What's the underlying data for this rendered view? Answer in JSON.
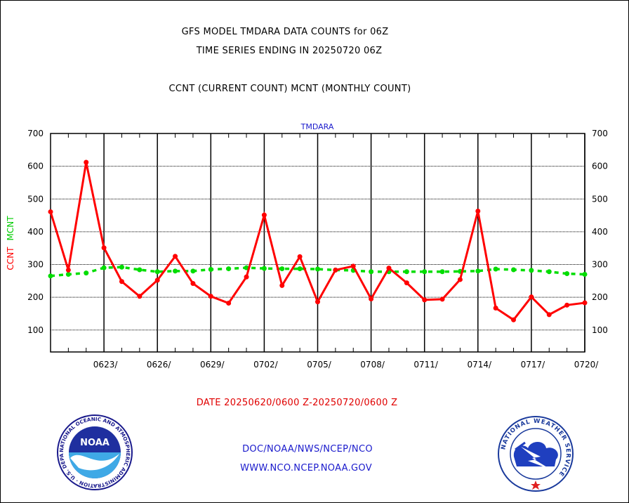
{
  "header": {
    "title_line1": "GFS MODEL TMDARA DATA COUNTS for 06Z",
    "title_line2": "TIME SERIES ENDING IN 20250720 06Z",
    "title_line3": "CCNT (CURRENT COUNT) MCNT (MONTHLY COUNT)"
  },
  "footer": {
    "date_range": "DATE 20250620/0600 Z-20250720/0600 Z",
    "org_line": "DOC/NOAA/NWS/NCEP/NCO",
    "url_line": "WWW.NCO.NCEP.NOAA.GOV"
  },
  "logos": {
    "noaa_text": "NOAA",
    "noaa_ring": "NATIONAL OCEANIC AND ATMOSPHERIC ADMINISTRATION · U.S. DEPARTMENT OF COMMERCE",
    "nws_ring": "NATIONAL WEATHER SERVICE"
  },
  "colors": {
    "ccnt": "#ff0000",
    "mcnt": "#00dd00",
    "ylabel_ccnt": "#ff0000",
    "ylabel_mcnt": "#00cc00",
    "chart_title": "#1a1acc",
    "axes": "#000000"
  },
  "chart_data": {
    "type": "line",
    "title": "TMDARA",
    "xlabel": "",
    "ylabel": "CCNT  MCNT",
    "ylabel_parts": [
      "CCNT",
      "MCNT"
    ],
    "ylim": [
      33,
      700
    ],
    "yticks": [
      100,
      200,
      300,
      400,
      500,
      600,
      700
    ],
    "x_day_range": [
      0,
      30
    ],
    "xticks": [
      {
        "day": 3,
        "label": "0623/"
      },
      {
        "day": 6,
        "label": "0626/"
      },
      {
        "day": 9,
        "label": "0629/"
      },
      {
        "day": 12,
        "label": "0702/"
      },
      {
        "day": 15,
        "label": "0705/"
      },
      {
        "day": 18,
        "label": "0708/"
      },
      {
        "day": 21,
        "label": "0711/"
      },
      {
        "day": 24,
        "label": "0714/"
      },
      {
        "day": 27,
        "label": "0717/"
      },
      {
        "day": 30,
        "label": "0720/"
      }
    ],
    "x": [
      0,
      1,
      2,
      3,
      4,
      5,
      6,
      7,
      8,
      9,
      10,
      11,
      12,
      13,
      14,
      15,
      16,
      17,
      18,
      19,
      20,
      21,
      22,
      23,
      24,
      25,
      26,
      27,
      28,
      29,
      30
    ],
    "series": [
      {
        "name": "CCNT",
        "values": [
          461,
          283,
          612,
          351,
          248,
          203,
          252,
          325,
          242,
          203,
          182,
          262,
          451,
          236,
          324,
          186,
          283,
          295,
          195,
          289,
          244,
          192,
          194,
          254,
          463,
          167,
          131,
          201,
          147,
          176,
          183
        ]
      },
      {
        "name": "MCNT",
        "values": [
          265,
          270,
          274,
          290,
          292,
          284,
          278,
          280,
          280,
          285,
          287,
          290,
          288,
          287,
          287,
          286,
          283,
          282,
          278,
          278,
          278,
          278,
          278,
          279,
          280,
          286,
          284,
          282,
          278,
          272,
          270
        ]
      }
    ]
  }
}
